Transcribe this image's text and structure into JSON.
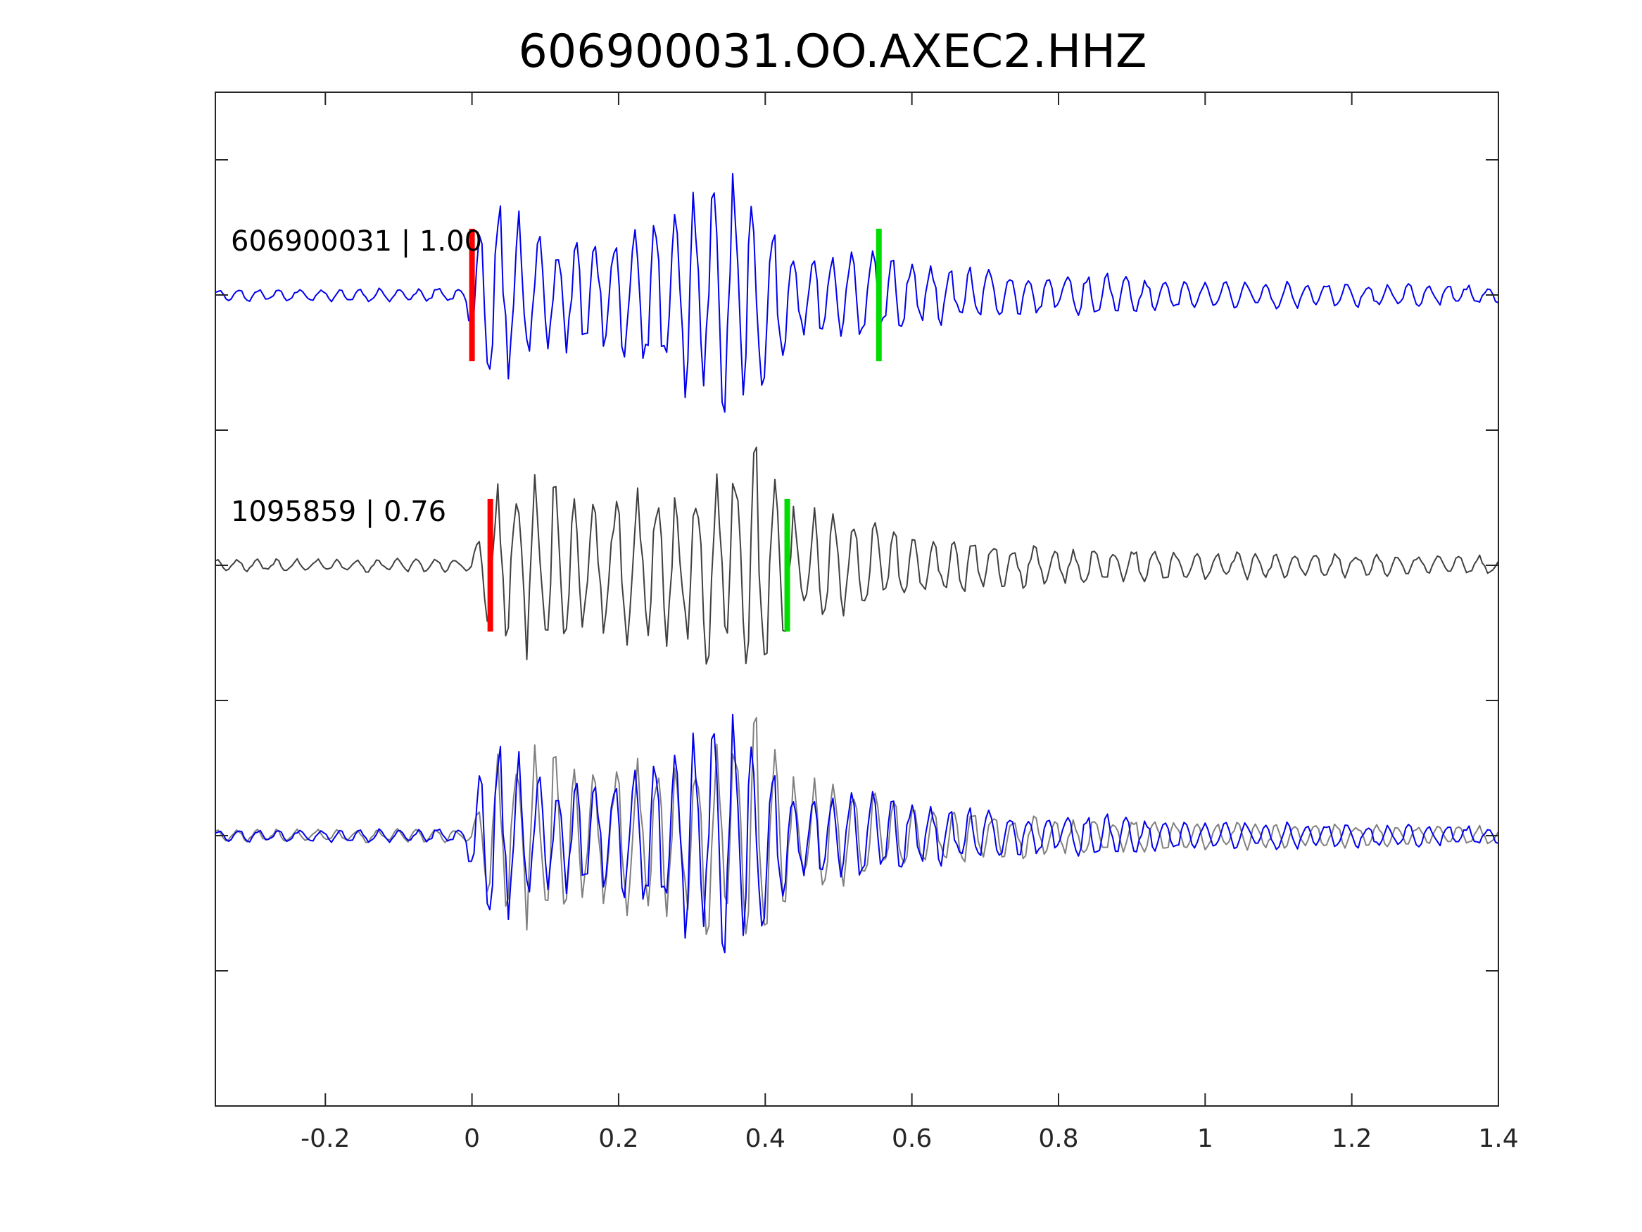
{
  "chart_data": {
    "type": "line",
    "title": "606900031.OO.AXEC2.HHZ",
    "xlabel": "",
    "ylabel": "",
    "xlim": [
      -0.35,
      1.4
    ],
    "ylim": [
      -0.5,
      3.25
    ],
    "xticks": [
      -0.2,
      0,
      0.2,
      0.4,
      0.6,
      0.8,
      1,
      1.2,
      1.4
    ],
    "xtick_labels": [
      "-0.2",
      "0",
      "0.2",
      "0.4",
      "0.6",
      "0.8",
      "1",
      "1.2",
      "1.4"
    ],
    "yticks": [
      0,
      0.5,
      1,
      1.5,
      2,
      2.5,
      3
    ],
    "grid": false,
    "colors": {
      "template": "#0000ee",
      "detection": "#404040",
      "overlay_detection": "#808080",
      "p_pick": "#ff0000",
      "s_pick": "#00dd00",
      "axes": "#262626"
    },
    "traces": [
      {
        "label": "606900031 | 1.00",
        "color": "#0000ee",
        "offset": 2.5,
        "p_pick": 0.0,
        "s_pick": 0.555,
        "envelope": [
          [
            -0.35,
            0.025
          ],
          [
            -0.01,
            0.03
          ],
          [
            0.0,
            0.18
          ],
          [
            0.03,
            0.45
          ],
          [
            0.1,
            0.22
          ],
          [
            0.25,
            0.32
          ],
          [
            0.35,
            0.55
          ],
          [
            0.45,
            0.2
          ],
          [
            0.55,
            0.18
          ],
          [
            0.65,
            0.12
          ],
          [
            0.8,
            0.07
          ],
          [
            0.85,
            0.1
          ],
          [
            0.9,
            0.08
          ],
          [
            1.0,
            0.06
          ],
          [
            1.4,
            0.04
          ]
        ],
        "seed": 11
      },
      {
        "label": "1095859 | 0.76",
        "color": "#404040",
        "offset": 1.5,
        "p_pick": 0.025,
        "s_pick": 0.43,
        "envelope": [
          [
            -0.35,
            0.025
          ],
          [
            0.0,
            0.03
          ],
          [
            0.02,
            0.3
          ],
          [
            0.05,
            0.4
          ],
          [
            0.1,
            0.36
          ],
          [
            0.25,
            0.3
          ],
          [
            0.35,
            0.45
          ],
          [
            0.38,
            0.62
          ],
          [
            0.43,
            0.25
          ],
          [
            0.55,
            0.18
          ],
          [
            0.65,
            0.12
          ],
          [
            0.8,
            0.08
          ],
          [
            1.0,
            0.06
          ],
          [
            1.4,
            0.04
          ]
        ],
        "seed": 29
      }
    ],
    "overlay": {
      "offset": 0.5,
      "series": [
        "606900031 | 1.00",
        "1095859 | 0.76"
      ]
    }
  }
}
